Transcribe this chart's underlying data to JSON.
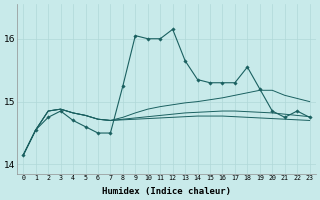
{
  "bg_color": "#c8eaea",
  "grid_color": "#b0d8d8",
  "line_color": "#1a6060",
  "xlabel": "Humidex (Indice chaleur)",
  "xlim": [
    -0.5,
    23.5
  ],
  "ylim": [
    13.85,
    16.55
  ],
  "yticks": [
    14,
    15,
    16
  ],
  "x_ticks": [
    0,
    1,
    2,
    3,
    4,
    5,
    6,
    7,
    8,
    9,
    10,
    11,
    12,
    13,
    14,
    15,
    16,
    17,
    18,
    19,
    20,
    21,
    22,
    23
  ],
  "series0": [
    14.15,
    14.55,
    14.75,
    14.85,
    14.7,
    14.6,
    14.5,
    14.5,
    15.25,
    16.05,
    16.0,
    16.0,
    16.15,
    15.65,
    15.35,
    15.3,
    15.3,
    15.3,
    15.55,
    15.2,
    14.85,
    14.75,
    14.85,
    14.75
  ],
  "series1": [
    14.15,
    14.55,
    14.85,
    14.88,
    14.82,
    14.78,
    14.72,
    14.7,
    14.75,
    14.82,
    14.88,
    14.92,
    14.95,
    14.98,
    15.0,
    15.03,
    15.06,
    15.1,
    15.14,
    15.18,
    15.18,
    15.1,
    15.05,
    15.0
  ],
  "series2": [
    14.15,
    14.55,
    14.85,
    14.88,
    14.82,
    14.78,
    14.72,
    14.7,
    14.72,
    14.74,
    14.76,
    14.78,
    14.8,
    14.82,
    14.83,
    14.84,
    14.85,
    14.85,
    14.84,
    14.83,
    14.82,
    14.8,
    14.78,
    14.76
  ],
  "series3": [
    14.15,
    14.55,
    14.85,
    14.88,
    14.82,
    14.78,
    14.72,
    14.7,
    14.71,
    14.72,
    14.73,
    14.74,
    14.75,
    14.76,
    14.77,
    14.77,
    14.77,
    14.76,
    14.75,
    14.74,
    14.73,
    14.72,
    14.71,
    14.7
  ]
}
